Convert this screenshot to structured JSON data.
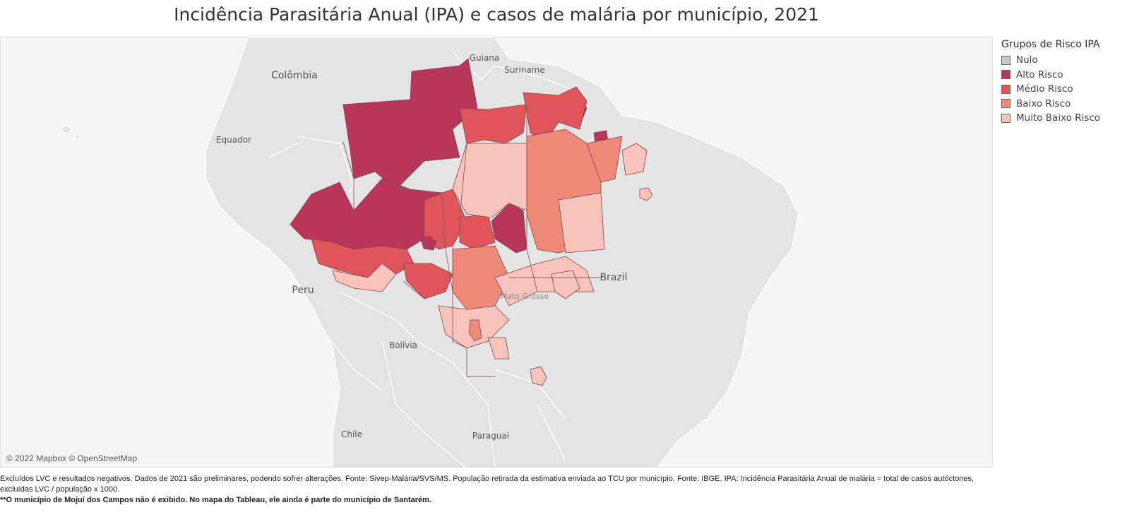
{
  "title": "Incidência Parasitária Anual (IPA) e casos de malária por município, 2021",
  "map": {
    "attribution": "© 2022 Mapbox © OpenStreetMap",
    "country_labels": [
      "Guiana",
      "Suriname",
      "Colômbia",
      "Equador",
      "Peru",
      "Brazil",
      "Bolívia",
      "Mato Grosso",
      "Chile",
      "Paraguai"
    ],
    "colors": {
      "background": "#f5f5f5",
      "land": "#e4e4e4",
      "border": "#ffffff",
      "region_outline": "#8a5a62"
    }
  },
  "legend": {
    "title": "Grupos de Risco IPA",
    "items": [
      {
        "label": "Nulo",
        "color": "#c8c8c8"
      },
      {
        "label": "Alto Risco",
        "color": "#b8365a"
      },
      {
        "label": "Médio Risco",
        "color": "#e0555a"
      },
      {
        "label": "Baixo Risco",
        "color": "#f08a78"
      },
      {
        "label": "Muito Baixo Risco",
        "color": "#f9c3bb"
      }
    ]
  },
  "footnotes": {
    "line1": "Excluídos LVC e resultados negativos. Dados de 2021 são preliminares, podendo sofrer alterações. Fonte: Sivep-Malária/SVS/MS. População retirada da estimativa enviada ao TCU por município. Fonte: IBGE. IPA: Incidência Parasitária Anual de malária = total de casos autóctones, excluídas LVC / população x 1000.",
    "line2": "**O município de Mojuí dos  Campos não é exibido. No mapa do Tableau, ele ainda é parte do município de Santarém."
  }
}
